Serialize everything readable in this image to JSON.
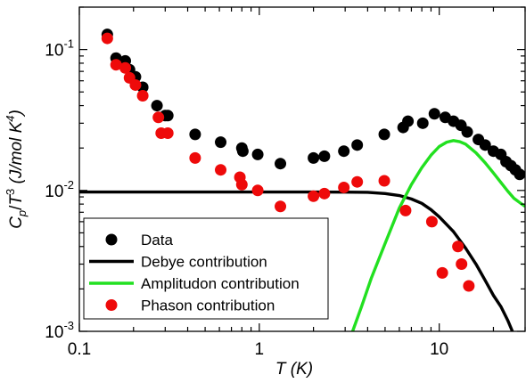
{
  "chart_data": {
    "type": "scatter",
    "xscale": "log",
    "yscale": "log",
    "xlim": [
      0.1,
      30
    ],
    "ylim": [
      0.001,
      0.2
    ],
    "x_ticks": [
      {
        "value": 0.1,
        "label": "0.1"
      },
      {
        "value": 1,
        "label": "1"
      },
      {
        "value": 10,
        "label": "10"
      }
    ],
    "y_ticks": [
      {
        "value": 0.1,
        "base": "10",
        "exp": "-1"
      },
      {
        "value": 0.01,
        "base": "10",
        "exp": "-2"
      },
      {
        "value": 0.001,
        "base": "10",
        "exp": "-3"
      }
    ],
    "xlabel": {
      "var": "T",
      "unit": " (K)"
    },
    "ylabel": {
      "c": "C",
      "sub": "p",
      "slash": "/",
      "t": "T",
      "sup3": "3",
      "unit_pre": " (J/mol K",
      "sup4": "4",
      "unit_post": ")"
    },
    "grid": false,
    "legend_position": "bottom-left",
    "series": [
      {
        "name": "Data",
        "kind": "scatter",
        "color": "#000000",
        "points": [
          [
            0.143,
            0.128
          ],
          [
            0.16,
            0.087
          ],
          [
            0.18,
            0.083
          ],
          [
            0.19,
            0.072
          ],
          [
            0.205,
            0.064
          ],
          [
            0.225,
            0.054
          ],
          [
            0.27,
            0.04
          ],
          [
            0.3,
            0.034
          ],
          [
            0.31,
            0.034
          ],
          [
            0.44,
            0.025
          ],
          [
            0.61,
            0.022
          ],
          [
            0.8,
            0.02
          ],
          [
            0.81,
            0.019
          ],
          [
            0.98,
            0.018
          ],
          [
            1.31,
            0.0155
          ],
          [
            2.0,
            0.017
          ],
          [
            2.3,
            0.0175
          ],
          [
            2.95,
            0.019
          ],
          [
            3.5,
            0.021
          ],
          [
            4.95,
            0.025
          ],
          [
            6.3,
            0.028
          ],
          [
            6.7,
            0.031
          ],
          [
            8.1,
            0.03
          ],
          [
            9.4,
            0.035
          ],
          [
            10.8,
            0.033
          ],
          [
            12.0,
            0.031
          ],
          [
            13.2,
            0.029
          ],
          [
            14.3,
            0.026
          ],
          [
            16.5,
            0.023
          ],
          [
            18.0,
            0.021
          ],
          [
            20.0,
            0.019
          ],
          [
            22.0,
            0.018
          ],
          [
            23.5,
            0.016
          ],
          [
            25.0,
            0.015
          ],
          [
            26.5,
            0.014
          ],
          [
            28.0,
            0.013
          ]
        ]
      },
      {
        "name": "Debye contribution",
        "kind": "line",
        "color": "#000000",
        "points": [
          [
            0.1,
            0.00975
          ],
          [
            0.5,
            0.00975
          ],
          [
            1,
            0.00975
          ],
          [
            2,
            0.00975
          ],
          [
            3,
            0.00973
          ],
          [
            4,
            0.0097
          ],
          [
            5,
            0.0095
          ],
          [
            6,
            0.0092
          ],
          [
            7,
            0.0087
          ],
          [
            8,
            0.0081
          ],
          [
            9,
            0.0073
          ],
          [
            10,
            0.0065
          ],
          [
            12,
            0.0051
          ],
          [
            14,
            0.0039
          ],
          [
            16,
            0.003
          ],
          [
            18,
            0.0023
          ],
          [
            20,
            0.0018
          ],
          [
            22,
            0.0015
          ],
          [
            24,
            0.0012
          ],
          [
            25.5,
            0.001
          ]
        ]
      },
      {
        "name": "Amplitudon contribution",
        "kind": "line",
        "color": "#22e020",
        "points": [
          [
            3.3,
            0.001
          ],
          [
            3.7,
            0.0015
          ],
          [
            4.2,
            0.0024
          ],
          [
            5.0,
            0.0042
          ],
          [
            6.0,
            0.0075
          ],
          [
            7.0,
            0.011
          ],
          [
            8.0,
            0.0145
          ],
          [
            9.0,
            0.0178
          ],
          [
            10.0,
            0.0205
          ],
          [
            11.0,
            0.022
          ],
          [
            12.0,
            0.0226
          ],
          [
            13.0,
            0.0222
          ],
          [
            14.0,
            0.0213
          ],
          [
            16.0,
            0.0185
          ],
          [
            18.0,
            0.0157
          ],
          [
            20.0,
            0.0133
          ],
          [
            22.0,
            0.0114
          ],
          [
            24.0,
            0.0099
          ],
          [
            26.0,
            0.0088
          ],
          [
            28.0,
            0.0082
          ],
          [
            30.0,
            0.0077
          ]
        ]
      },
      {
        "name": "Phason contribution",
        "kind": "scatter",
        "color": "#ee0a0a",
        "points": [
          [
            0.143,
            0.12
          ],
          [
            0.16,
            0.078
          ],
          [
            0.18,
            0.074
          ],
          [
            0.19,
            0.063
          ],
          [
            0.205,
            0.056
          ],
          [
            0.225,
            0.047
          ],
          [
            0.275,
            0.033
          ],
          [
            0.285,
            0.0255
          ],
          [
            0.31,
            0.0255
          ],
          [
            0.44,
            0.017
          ],
          [
            0.61,
            0.014
          ],
          [
            0.78,
            0.0124
          ],
          [
            0.8,
            0.011
          ],
          [
            0.98,
            0.01
          ],
          [
            1.31,
            0.0077
          ],
          [
            2.0,
            0.0091
          ],
          [
            2.3,
            0.0095
          ],
          [
            2.95,
            0.0105
          ],
          [
            3.5,
            0.0115
          ],
          [
            4.95,
            0.0117
          ],
          [
            6.5,
            0.0072
          ],
          [
            9.1,
            0.006
          ],
          [
            10.4,
            0.0026
          ],
          [
            12.7,
            0.004
          ],
          [
            13.3,
            0.003
          ],
          [
            14.6,
            0.0021
          ]
        ]
      }
    ]
  }
}
